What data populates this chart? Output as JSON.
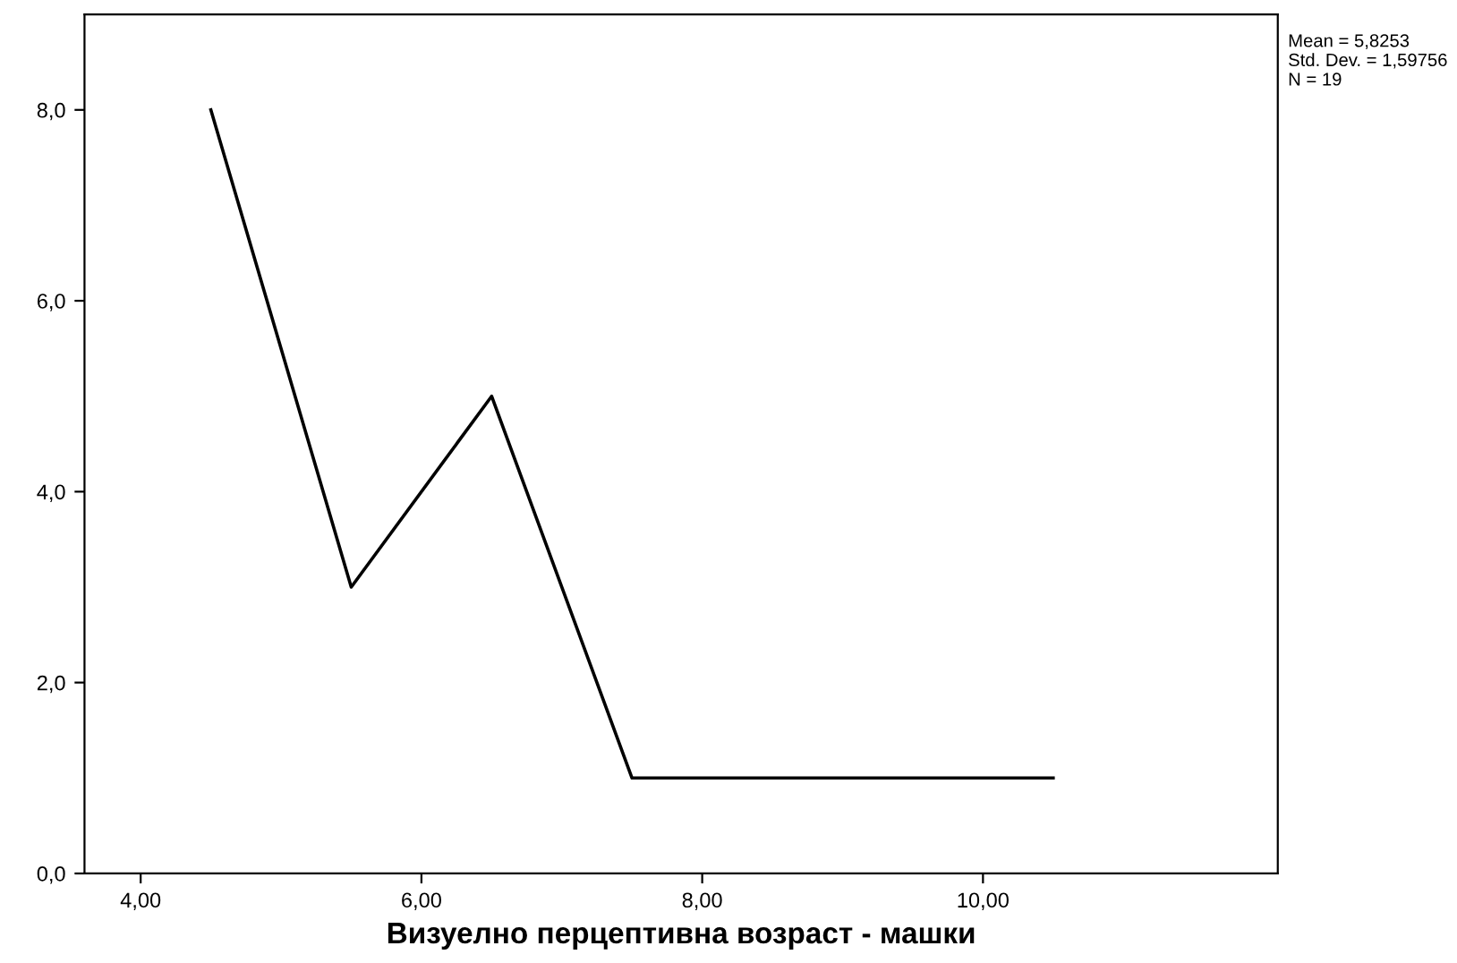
{
  "chart_data": {
    "type": "line",
    "xlabel": "Визуелно перцептивна возраст - машки",
    "x": [
      4.5,
      5.5,
      6.5,
      7.5,
      8.5,
      9.5,
      10.5
    ],
    "series": [
      {
        "color": "#000000",
        "values": [
          8,
          3,
          5,
          1,
          1,
          1,
          1
        ]
      }
    ],
    "xlim": [
      3.6,
      12.1
    ],
    "ylim": [
      0,
      9
    ],
    "xticks": [
      {
        "value": 4,
        "label": "4,00"
      },
      {
        "value": 6,
        "label": "6,00"
      },
      {
        "value": 8,
        "label": "8,00"
      },
      {
        "value": 10,
        "label": "10,00"
      }
    ],
    "yticks": [
      {
        "value": 0,
        "label": "0,0"
      },
      {
        "value": 2,
        "label": "2,0"
      },
      {
        "value": 4,
        "label": "4,0"
      },
      {
        "value": 6,
        "label": "6,0"
      },
      {
        "value": 8,
        "label": "8,0"
      }
    ],
    "annotations": [
      "Mean = 5,8253",
      "Std. Dev. = 1,59756",
      "N = 19"
    ],
    "grid": false,
    "marker": "none",
    "line_style": "solid"
  }
}
